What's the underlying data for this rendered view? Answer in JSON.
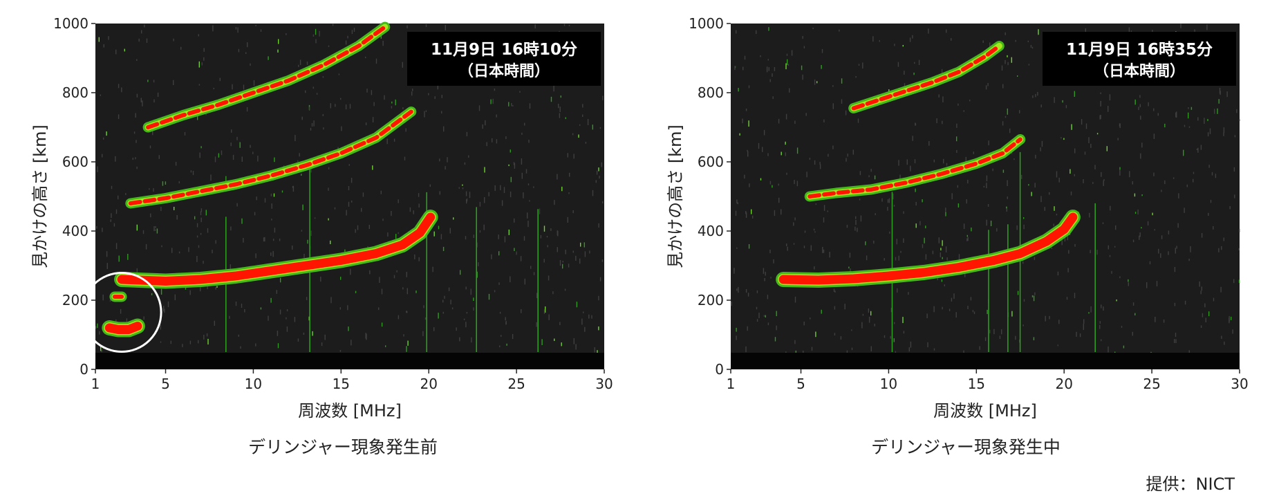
{
  "credit": "提供：NICT",
  "chart_data": [
    {
      "type": "scatter",
      "title": "11月9日 16時10分",
      "subtitle": "（日本時間）",
      "caption": "デリンジャー現象発生前",
      "xlabel": "周波数 [MHz]",
      "ylabel": "見かけの高さ [km]",
      "xlim": [
        1,
        30
      ],
      "ylim": [
        0,
        1000
      ],
      "xticks": [
        1,
        5,
        10,
        15,
        20,
        25,
        30
      ],
      "yticks": [
        0,
        200,
        400,
        600,
        800,
        1000
      ],
      "annotation": "circle highlighting low-altitude echoes (~100-220 km, 1.5-4 MHz)",
      "series": [
        {
          "values": [
            [
              4.0,
              700
            ],
            [
              6,
              735
            ],
            [
              8,
              765
            ],
            [
              10,
              800
            ],
            [
              12,
              835
            ],
            [
              14,
              880
            ],
            [
              16,
              935
            ],
            [
              17.5,
              990
            ]
          ]
        },
        {
          "values": [
            [
              3.0,
              480
            ],
            [
              5,
              495
            ],
            [
              7,
              515
            ],
            [
              9,
              535
            ],
            [
              11,
              560
            ],
            [
              13,
              590
            ],
            [
              15,
              625
            ],
            [
              17,
              670
            ],
            [
              19,
              745
            ]
          ]
        },
        {
          "values": [
            [
              2.5,
              260
            ],
            [
              5,
              255
            ],
            [
              7,
              260
            ],
            [
              9,
              270
            ],
            [
              11,
              285
            ],
            [
              13,
              300
            ],
            [
              15,
              315
            ],
            [
              17,
              335
            ],
            [
              18.5,
              360
            ],
            [
              19.5,
              395
            ],
            [
              20.1,
              440
            ]
          ]
        },
        {
          "values": [
            [
              1.8,
              120
            ],
            [
              2.3,
              115
            ],
            [
              2.9,
              115
            ],
            [
              3.4,
              125
            ]
          ]
        },
        {
          "values": [
            [
              2.1,
              210
            ],
            [
              2.5,
              210
            ]
          ]
        }
      ]
    },
    {
      "type": "scatter",
      "title": "11月9日 16時35分",
      "subtitle": "（日本時間）",
      "caption": "デリンジャー現象発生中",
      "xlabel": "周波数 [MHz]",
      "ylabel": "見かけの高さ [km]",
      "xlim": [
        1,
        30
      ],
      "ylim": [
        0,
        1000
      ],
      "xticks": [
        1,
        5,
        10,
        15,
        20,
        25,
        30
      ],
      "yticks": [
        0,
        200,
        400,
        600,
        800,
        1000
      ],
      "series": [
        {
          "values": [
            [
              8.0,
              755
            ],
            [
              9.5,
              780
            ],
            [
              11,
              805
            ],
            [
              12.5,
              830
            ],
            [
              14,
              860
            ],
            [
              15.5,
              905
            ],
            [
              16.3,
              935
            ]
          ]
        },
        {
          "values": [
            [
              5.5,
              500
            ],
            [
              7,
              510
            ],
            [
              9,
              520
            ],
            [
              11,
              540
            ],
            [
              13,
              565
            ],
            [
              15,
              595
            ],
            [
              16.5,
              625
            ],
            [
              17.5,
              665
            ]
          ]
        },
        {
          "values": [
            [
              4.0,
              260
            ],
            [
              6,
              258
            ],
            [
              8,
              262
            ],
            [
              10,
              270
            ],
            [
              12,
              280
            ],
            [
              14,
              295
            ],
            [
              16,
              315
            ],
            [
              17.5,
              335
            ],
            [
              19,
              370
            ],
            [
              20,
              405
            ],
            [
              20.5,
              440
            ]
          ]
        }
      ]
    }
  ]
}
